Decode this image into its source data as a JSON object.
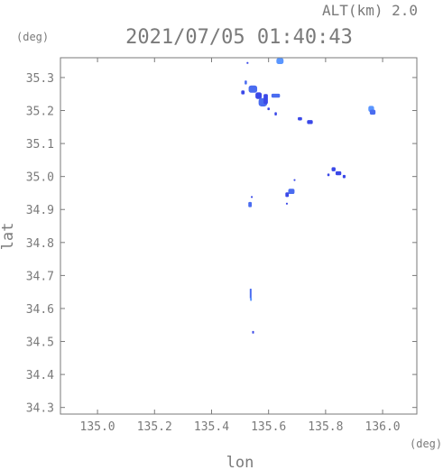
{
  "chart_data": {
    "type": "scatter",
    "title": "2021/07/05 01:40:43",
    "subtitle": "ALT(km) 2.0",
    "xlabel": "lon",
    "ylabel": "lat",
    "x_unit": "(deg)",
    "y_unit": "(deg)",
    "xlim": [
      134.87,
      136.12
    ],
    "ylim": [
      34.28,
      35.36
    ],
    "x_ticks": [
      {
        "value": 135.0,
        "label": "135.0"
      },
      {
        "value": 135.2,
        "label": "135.2"
      },
      {
        "value": 135.4,
        "label": "135.4"
      },
      {
        "value": 135.6,
        "label": "135.6"
      },
      {
        "value": 135.8,
        "label": "135.8"
      },
      {
        "value": 136.0,
        "label": "136.0"
      }
    ],
    "y_ticks": [
      {
        "value": 34.3,
        "label": "34.3"
      },
      {
        "value": 34.4,
        "label": "34.4"
      },
      {
        "value": 34.5,
        "label": "34.5"
      },
      {
        "value": 34.6,
        "label": "34.6"
      },
      {
        "value": 34.7,
        "label": "34.7"
      },
      {
        "value": 34.8,
        "label": "34.8"
      },
      {
        "value": 34.9,
        "label": "34.9"
      },
      {
        "value": 35.0,
        "label": "35.0"
      },
      {
        "value": 35.1,
        "label": "35.1"
      },
      {
        "value": 35.2,
        "label": "35.2"
      },
      {
        "value": 35.3,
        "label": "35.3"
      }
    ],
    "grid": false,
    "colors": {
      "dark": "#3a48e8",
      "mid": "#4a6cf0",
      "light": "#5a96ff",
      "axis": "#7a7a7a"
    },
    "points": [
      {
        "lon": 135.525,
        "lat": 35.345,
        "w": 0.004,
        "h": 0.004,
        "c": "dark"
      },
      {
        "lon": 135.64,
        "lat": 35.35,
        "w": 0.025,
        "h": 0.018,
        "c": "light"
      },
      {
        "lon": 135.51,
        "lat": 35.255,
        "w": 0.012,
        "h": 0.012,
        "c": "dark"
      },
      {
        "lon": 135.52,
        "lat": 35.285,
        "w": 0.008,
        "h": 0.012,
        "c": "mid"
      },
      {
        "lon": 135.545,
        "lat": 35.265,
        "w": 0.03,
        "h": 0.022,
        "c": "mid"
      },
      {
        "lon": 135.565,
        "lat": 35.245,
        "w": 0.022,
        "h": 0.02,
        "c": "dark"
      },
      {
        "lon": 135.58,
        "lat": 35.225,
        "w": 0.03,
        "h": 0.025,
        "c": "mid"
      },
      {
        "lon": 135.59,
        "lat": 35.235,
        "w": 0.015,
        "h": 0.03,
        "c": "dark"
      },
      {
        "lon": 135.6,
        "lat": 35.205,
        "w": 0.008,
        "h": 0.008,
        "c": "dark"
      },
      {
        "lon": 135.625,
        "lat": 35.245,
        "w": 0.03,
        "h": 0.012,
        "c": "mid"
      },
      {
        "lon": 135.625,
        "lat": 35.19,
        "w": 0.008,
        "h": 0.01,
        "c": "dark"
      },
      {
        "lon": 135.71,
        "lat": 35.175,
        "w": 0.015,
        "h": 0.01,
        "c": "dark"
      },
      {
        "lon": 135.745,
        "lat": 35.165,
        "w": 0.02,
        "h": 0.012,
        "c": "dark"
      },
      {
        "lon": 135.96,
        "lat": 35.205,
        "w": 0.02,
        "h": 0.018,
        "c": "light"
      },
      {
        "lon": 135.965,
        "lat": 35.195,
        "w": 0.02,
        "h": 0.015,
        "c": "mid"
      },
      {
        "lon": 135.828,
        "lat": 35.022,
        "w": 0.014,
        "h": 0.012,
        "c": "dark"
      },
      {
        "lon": 135.845,
        "lat": 35.01,
        "w": 0.02,
        "h": 0.012,
        "c": "dark"
      },
      {
        "lon": 135.865,
        "lat": 35.0,
        "w": 0.01,
        "h": 0.01,
        "c": "dark"
      },
      {
        "lon": 135.81,
        "lat": 35.005,
        "w": 0.008,
        "h": 0.008,
        "c": "dark"
      },
      {
        "lon": 135.69,
        "lat": 34.99,
        "w": 0.004,
        "h": 0.004,
        "c": "dark"
      },
      {
        "lon": 135.68,
        "lat": 34.955,
        "w": 0.022,
        "h": 0.016,
        "c": "mid"
      },
      {
        "lon": 135.665,
        "lat": 34.945,
        "w": 0.012,
        "h": 0.014,
        "c": "dark"
      },
      {
        "lon": 135.663,
        "lat": 34.918,
        "w": 0.004,
        "h": 0.005,
        "c": "dark"
      },
      {
        "lon": 135.54,
        "lat": 34.938,
        "w": 0.004,
        "h": 0.005,
        "c": "dark"
      },
      {
        "lon": 135.535,
        "lat": 34.915,
        "w": 0.012,
        "h": 0.016,
        "c": "mid"
      },
      {
        "lon": 135.537,
        "lat": 34.645,
        "w": 0.006,
        "h": 0.03,
        "c": "mid"
      },
      {
        "lon": 135.538,
        "lat": 34.628,
        "w": 0.006,
        "h": 0.01,
        "c": "light"
      },
      {
        "lon": 135.545,
        "lat": 34.528,
        "w": 0.005,
        "h": 0.008,
        "c": "dark"
      }
    ]
  }
}
